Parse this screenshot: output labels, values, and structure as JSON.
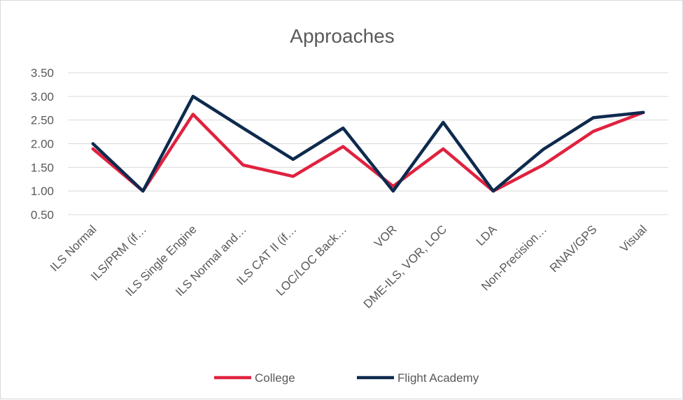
{
  "chart_data": {
    "type": "line",
    "title": "Approaches",
    "categories": [
      "ILS Normal",
      "ILS/PRM (if…",
      "ILS Single Engine",
      "ILS Normal and…",
      "ILS CAT II (if…",
      "LOC/LOC Back…",
      "VOR",
      "DME-ILS, VOR, LOC",
      "LDA",
      "Non-Precision…",
      "RNAV/GPS",
      "Visual"
    ],
    "series": [
      {
        "name": "College",
        "color": "#e0223f",
        "values": [
          1.89,
          1.0,
          2.62,
          1.55,
          1.31,
          1.94,
          1.1,
          1.89,
          1.0,
          1.55,
          2.26,
          2.66
        ]
      },
      {
        "name": "Flight Academy",
        "color": "#0e2a4e",
        "values": [
          2.0,
          1.0,
          3.0,
          2.33,
          1.67,
          2.33,
          1.0,
          2.45,
          1.0,
          1.88,
          2.55,
          2.66
        ]
      }
    ],
    "ylim": [
      0.5,
      3.5
    ],
    "yticks": [
      "3.50",
      "3.00",
      "2.50",
      "2.00",
      "1.50",
      "1.00",
      "0.50"
    ],
    "xlabel": "",
    "ylabel": "",
    "grid": true,
    "legend": "bottom"
  }
}
